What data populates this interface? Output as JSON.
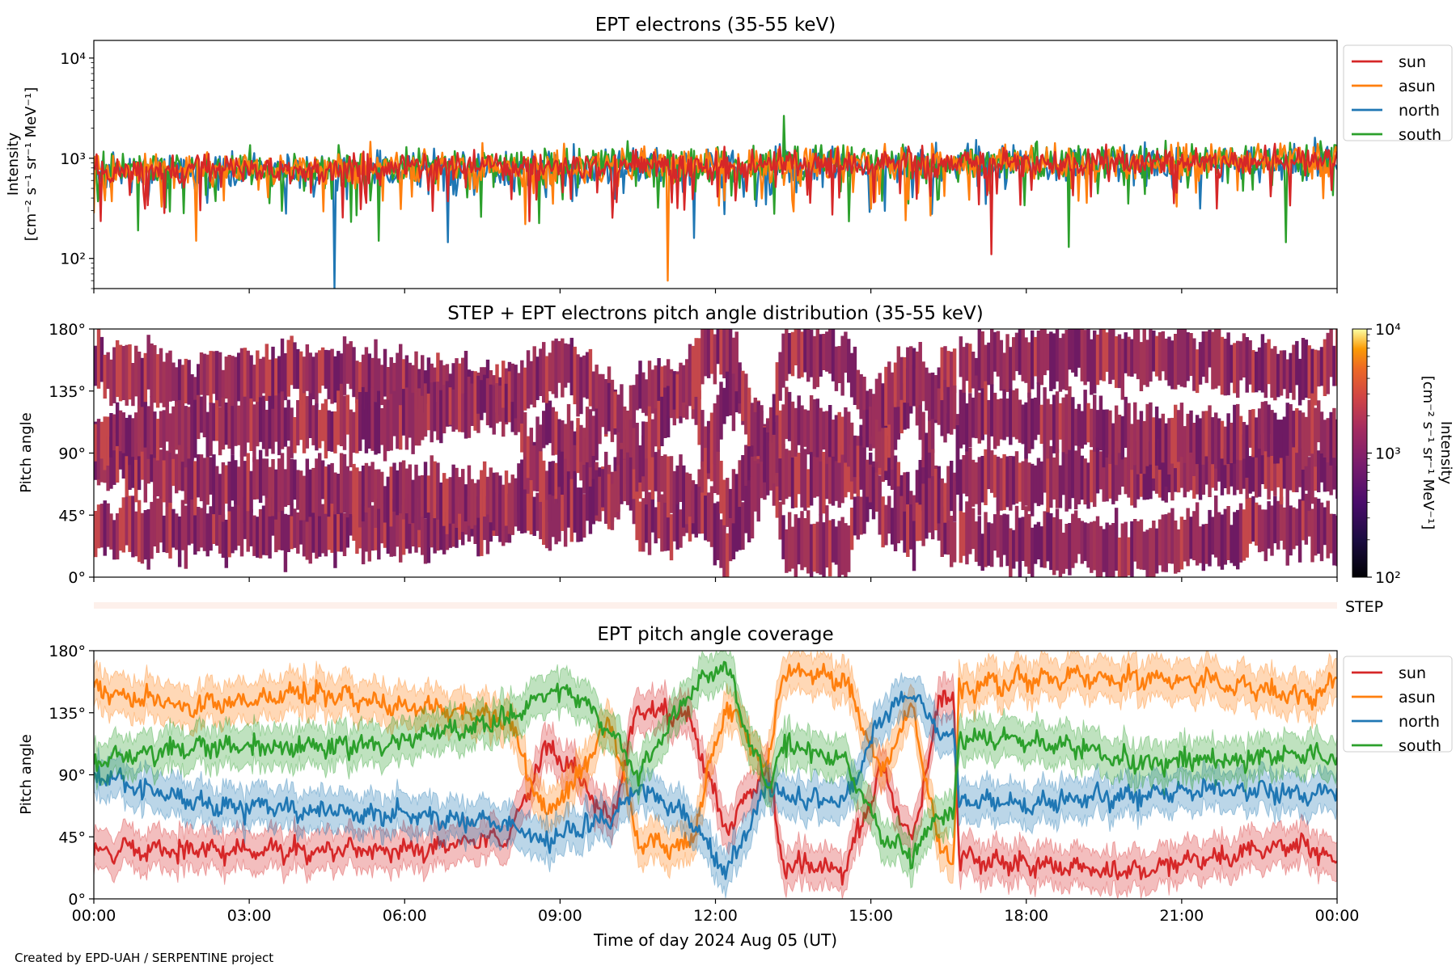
{
  "footer": "Created by EPD-UAH / SERPENTINE project",
  "chart_data": [
    {
      "type": "line",
      "title": "EPT electrons (35-55 keV)",
      "ylabel": [
        "Intensity",
        "[cm⁻² s⁻¹ sr⁻¹ MeV⁻¹]"
      ],
      "yscale": "log",
      "ylim": [
        50,
        15000
      ],
      "yticks": [
        {
          "value": 100,
          "label": "10²"
        },
        {
          "value": 1000,
          "label": "10³"
        },
        {
          "value": 10000,
          "label": "10⁴"
        }
      ],
      "xlim": [
        "2024-08-05 00:00",
        "2024-08-06 00:00"
      ],
      "legend_position": "outside-right-top",
      "series": [
        {
          "name": "north",
          "color": "#1f77b4",
          "baseline": 730,
          "spread": 0.32,
          "spikes": [
            {
              "time": "04:38",
              "value": 50
            },
            {
              "time": "06:50",
              "value": 145
            },
            {
              "time": "03:43",
              "value": 280
            },
            {
              "time": "11:35",
              "value": 160
            }
          ]
        },
        {
          "name": "south",
          "color": "#2ca02c",
          "baseline": 780,
          "spread": 0.3,
          "spikes": [
            {
              "time": "13:20",
              "value": 2650
            },
            {
              "time": "00:52",
              "value": 190
            },
            {
              "time": "18:50",
              "value": 130
            },
            {
              "time": "23:00",
              "value": 145
            },
            {
              "time": "05:30",
              "value": 150
            }
          ]
        },
        {
          "name": "asun",
          "color": "#ff7f0e",
          "baseline": 760,
          "spread": 0.3,
          "spikes": [
            {
              "time": "11:05",
              "value": 60
            },
            {
              "time": "01:58",
              "value": 150
            },
            {
              "time": "08:20",
              "value": 220
            },
            {
              "time": "15:40",
              "value": 240
            }
          ]
        },
        {
          "name": "sun",
          "color": "#d62728",
          "baseline": 760,
          "spread": 0.25,
          "spikes": [
            {
              "time": "17:20",
              "value": 110
            },
            {
              "time": "08:25",
              "value": 235
            }
          ]
        }
      ],
      "legend_order": [
        "sun",
        "asun",
        "north",
        "south"
      ]
    },
    {
      "type": "heatmap",
      "title": "STEP + EPT electrons pitch angle distribution (35-55 keV)",
      "ylabel": "Pitch angle",
      "ylim": [
        0,
        180
      ],
      "yticks": [
        "0°",
        "45°",
        "90°",
        "135°",
        "180°"
      ],
      "colorbar": {
        "label": [
          "Intensity",
          "[cm⁻² s⁻¹ sr⁻¹ MeV⁻¹]"
        ],
        "scale": "log",
        "range": [
          100,
          10000
        ],
        "ticks": [
          {
            "value": 100,
            "label": "10²"
          },
          {
            "value": 1000,
            "label": "10³"
          },
          {
            "value": 10000,
            "label": "10⁴"
          }
        ],
        "colormap": "inferno"
      },
      "dominant_color": "#8e2a60",
      "gaps_follow": "EPT pitch angle coverage"
    },
    {
      "type": "bar",
      "label": "STEP",
      "color": "#fdf0eb",
      "note": "STEP strip"
    },
    {
      "type": "area",
      "title": "EPT pitch angle coverage",
      "ylabel": "Pitch angle",
      "xlabel": "Time of day 2024 Aug 05 (UT)",
      "ylim": [
        0,
        180
      ],
      "yticks": [
        "0°",
        "45°",
        "90°",
        "135°",
        "180°"
      ],
      "xticks": [
        "00:00",
        "03:00",
        "06:00",
        "09:00",
        "12:00",
        "15:00",
        "18:00",
        "21:00",
        "00:00"
      ],
      "legend_position": "outside-right-top",
      "band_halfwidth_deg": 14,
      "series": [
        {
          "name": "sun",
          "color": "#d62728",
          "keyframes": [
            [
              0,
              35
            ],
            [
              2,
              35
            ],
            [
              4,
              35
            ],
            [
              6,
              35
            ],
            [
              8,
              45
            ],
            [
              8.7,
              110
            ],
            [
              9.2,
              95
            ],
            [
              10.0,
              55
            ],
            [
              10.5,
              140
            ],
            [
              11.5,
              130
            ],
            [
              12.2,
              50
            ],
            [
              13.0,
              95
            ],
            [
              13.3,
              25
            ],
            [
              14.5,
              20
            ],
            [
              15.2,
              95
            ],
            [
              15.8,
              40
            ],
            [
              16.3,
              140
            ],
            [
              16.6,
              150
            ],
            [
              16.7,
              30
            ],
            [
              18,
              25
            ],
            [
              20,
              20
            ],
            [
              21.5,
              30
            ],
            [
              23.5,
              40
            ],
            [
              24,
              25
            ]
          ]
        },
        {
          "name": "asun",
          "color": "#ff7f0e",
          "keyframes": [
            [
              0,
              150
            ],
            [
              2,
              140
            ],
            [
              4,
              150
            ],
            [
              6,
              140
            ],
            [
              8,
              130
            ],
            [
              8.7,
              60
            ],
            [
              9.2,
              80
            ],
            [
              10.0,
              130
            ],
            [
              10.5,
              40
            ],
            [
              11.5,
              40
            ],
            [
              12.2,
              140
            ],
            [
              13.0,
              95
            ],
            [
              13.3,
              165
            ],
            [
              14.5,
              160
            ],
            [
              15.2,
              90
            ],
            [
              15.8,
              140
            ],
            [
              16.3,
              40
            ],
            [
              16.6,
              30
            ],
            [
              16.7,
              150
            ],
            [
              18,
              160
            ],
            [
              20,
              160
            ],
            [
              21.5,
              160
            ],
            [
              23.5,
              145
            ],
            [
              24,
              160
            ]
          ]
        },
        {
          "name": "north",
          "color": "#1f77b4",
          "keyframes": [
            [
              0,
              90
            ],
            [
              2,
              70
            ],
            [
              4,
              65
            ],
            [
              6,
              60
            ],
            [
              8,
              55
            ],
            [
              8.7,
              40
            ],
            [
              9.2,
              50
            ],
            [
              10.0,
              60
            ],
            [
              10.5,
              80
            ],
            [
              11.5,
              60
            ],
            [
              12.2,
              20
            ],
            [
              13.0,
              80
            ],
            [
              13.3,
              75
            ],
            [
              14.5,
              70
            ],
            [
              15.2,
              130
            ],
            [
              15.8,
              150
            ],
            [
              16.3,
              120
            ],
            [
              16.6,
              120
            ],
            [
              16.7,
              70
            ],
            [
              18,
              70
            ],
            [
              20,
              75
            ],
            [
              21.5,
              80
            ],
            [
              23.5,
              75
            ],
            [
              24,
              80
            ]
          ]
        },
        {
          "name": "south",
          "color": "#2ca02c",
          "keyframes": [
            [
              0,
              100
            ],
            [
              2,
              110
            ],
            [
              4,
              110
            ],
            [
              6,
              115
            ],
            [
              8,
              130
            ],
            [
              8.7,
              150
            ],
            [
              9.2,
              150
            ],
            [
              10.0,
              120
            ],
            [
              10.5,
              90
            ],
            [
              11.5,
              150
            ],
            [
              12.2,
              170
            ],
            [
              13.0,
              80
            ],
            [
              13.3,
              110
            ],
            [
              14.5,
              100
            ],
            [
              15.2,
              50
            ],
            [
              15.8,
              30
            ],
            [
              16.3,
              60
            ],
            [
              16.6,
              60
            ],
            [
              16.7,
              115
            ],
            [
              18,
              115
            ],
            [
              20,
              100
            ],
            [
              21.5,
              100
            ],
            [
              23.5,
              105
            ],
            [
              24,
              100
            ]
          ]
        }
      ],
      "legend_order": [
        "sun",
        "asun",
        "north",
        "south"
      ]
    }
  ]
}
